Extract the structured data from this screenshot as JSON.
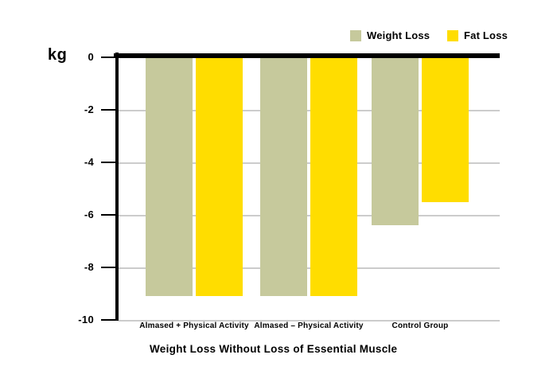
{
  "legend": {
    "items": [
      {
        "label": "Weight Loss",
        "color": "#c6c99c"
      },
      {
        "label": "Fat Loss",
        "color": "#ffdd00"
      }
    ]
  },
  "y_axis": {
    "unit_label": "kg",
    "tick_labels": [
      "0",
      "-2",
      "-4",
      "-6",
      "-8",
      "-10"
    ],
    "tick_values": [
      0,
      -2,
      -4,
      -6,
      -8,
      -10
    ]
  },
  "x_axis": {
    "title": "Weight Loss Without Loss of Essential Muscle"
  },
  "chart_data": {
    "type": "bar",
    "categories": [
      "Almased + Physical Activity",
      "Almased – Physical Activity",
      "Control Group"
    ],
    "series": [
      {
        "name": "Weight Loss",
        "color": "#c6c99c",
        "values": [
          -9.1,
          -9.1,
          -6.4
        ]
      },
      {
        "name": "Fat Loss",
        "color": "#ffdd00",
        "values": [
          -9.1,
          -9.1,
          -5.5
        ]
      }
    ],
    "title": "Weight Loss Without Loss of Essential Muscle",
    "xlabel": "",
    "ylabel": "kg",
    "ylim": [
      -10,
      0
    ],
    "yticks": [
      0,
      -2,
      -4,
      -6,
      -8,
      -10
    ],
    "grid": true,
    "grid_color": "#cccccc",
    "legend_position": "top-right",
    "bar_direction": "down-from-zero",
    "background": "#ffffff"
  }
}
